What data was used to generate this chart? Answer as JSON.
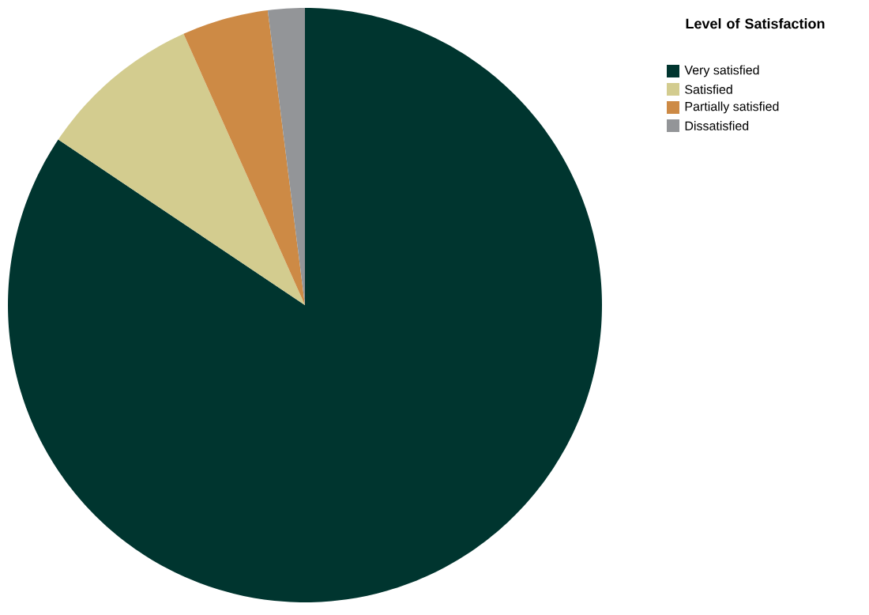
{
  "chart_data": {
    "type": "pie",
    "legend_title": "Level of Satisfaction",
    "categories": [
      "Very satisfied",
      "Satisfied",
      "Partially satisfied",
      "Dissatisfied"
    ],
    "values": [
      84.4,
      8.9,
      4.7,
      2.0
    ],
    "colors": [
      "#00352f",
      "#d3cc8f",
      "#cd8a45",
      "#939598"
    ],
    "legend": "top right"
  }
}
